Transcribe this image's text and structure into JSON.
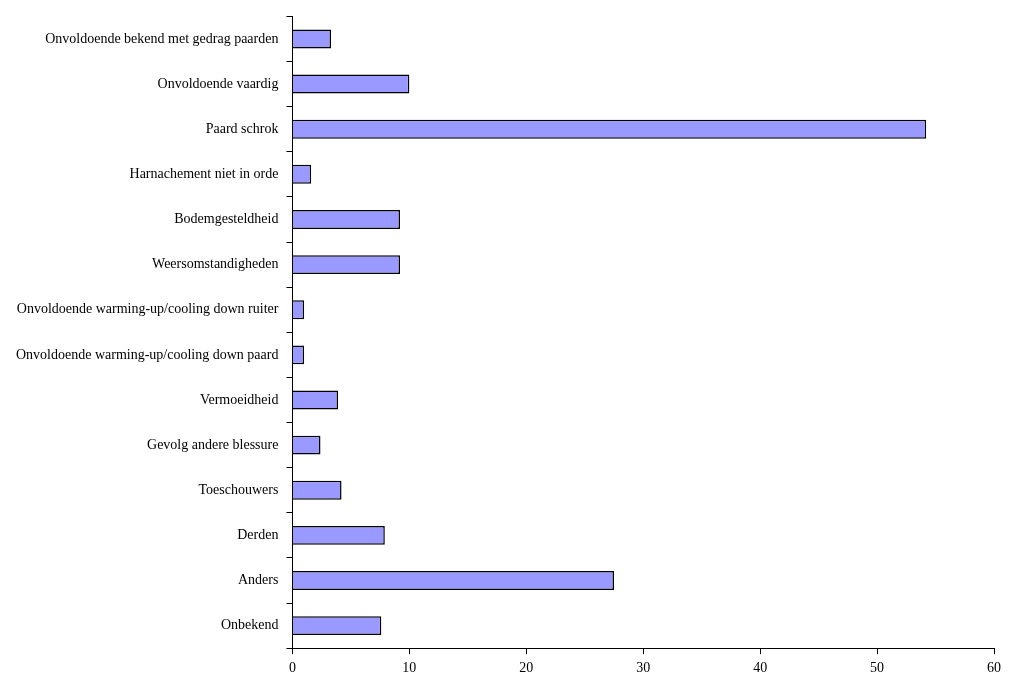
{
  "chart_data": {
    "type": "bar",
    "orientation": "horizontal",
    "categories": [
      "Onvoldoende bekend met gedrag paarden",
      "Onvoldoende vaardig",
      "Paard schrok",
      "Harnachement niet in orde",
      "Bodemgesteldheid",
      "Weersomstandigheden",
      "Onvoldoende warming-up/cooling down ruiter",
      "Onvoldoende warming-up/cooling down paard",
      "Vermoeidheid",
      "Gevolg andere blessure",
      "Toeschouwers",
      "Derden",
      "Anders",
      "Onbekend"
    ],
    "values": [
      3.3,
      10,
      54.2,
      1.6,
      9.2,
      9.2,
      1.0,
      1.0,
      3.9,
      2.4,
      4.2,
      7.9,
      27.5,
      7.6
    ],
    "color": "#9999ff",
    "xlim": [
      0,
      60
    ],
    "xticks": [
      0,
      10,
      20,
      30,
      40,
      50,
      60
    ],
    "grid": false,
    "legend": false
  }
}
